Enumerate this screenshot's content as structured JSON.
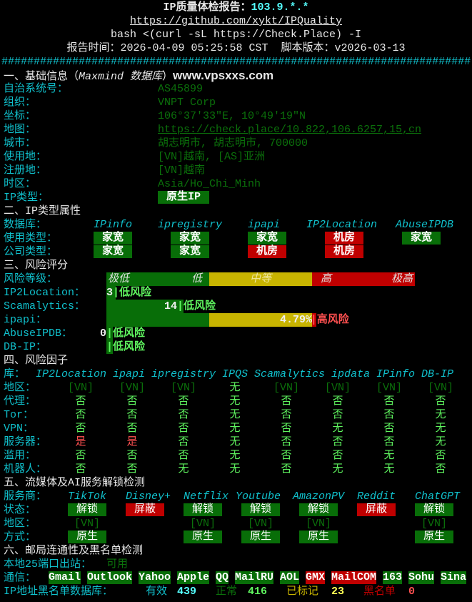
{
  "header": {
    "title_label": "IP质量体检报告：",
    "title_ip": "103.9.*.*",
    "repo_url": "https://github.com/xykt/IPQuality",
    "command": "bash <(curl -sL https://Check.Place) -I",
    "report_time": "报告时间：2026-04-09 05:25:58 CST  脚本版本：v2026-03-13",
    "separator": "#########################################################################"
  },
  "basic": {
    "heading": "一、基础信息（",
    "heading_db": "Maxmind 数据库",
    "heading_end": "）",
    "watermark": "www.vpsxxs.com",
    "rows": [
      {
        "label": "自治系统号：",
        "value": "AS45899"
      },
      {
        "label": "组织：",
        "value": "VNPT Corp"
      },
      {
        "label": "坐标：",
        "value": "106°37′33″E, 10°49′19″N"
      },
      {
        "label": "地图：",
        "value": "https://check.place/10.822,106.6257,15,cn"
      },
      {
        "label": "城市：",
        "value": "胡志明市, 胡志明市, 700000"
      },
      {
        "label": "使用地：",
        "value": "[VN]越南, [AS]亚洲"
      },
      {
        "label": "注册地：",
        "value": "[VN]越南"
      },
      {
        "label": "时区：",
        "value": "Asia/Ho_Chi_Minh"
      }
    ],
    "ip_type_label": "IP类型：",
    "ip_type_value": "原生IP"
  },
  "type_attr": {
    "heading": "二、IP类型属性",
    "db_label": "数据库：",
    "usage_label": "使用类型：",
    "company_label": "公司类型：",
    "databases": [
      {
        "name": "IPinfo",
        "usage": "家宽",
        "usage_color": "green",
        "company": "家宽",
        "company_color": "green"
      },
      {
        "name": "ipregistry",
        "usage": "家宽",
        "usage_color": "green",
        "company": "家宽",
        "company_color": "green"
      },
      {
        "name": "ipapi",
        "usage": "家宽",
        "usage_color": "green",
        "company": "机房",
        "company_color": "red"
      },
      {
        "name": "IP2Location",
        "usage": "机房",
        "usage_color": "red",
        "company": "机房",
        "company_color": "red"
      },
      {
        "name": "AbuseIPDB",
        "usage": "家宽",
        "usage_color": "green"
      }
    ]
  },
  "risk": {
    "heading": "三、风险评分",
    "scale_label": "风险等级：",
    "scale": [
      "极低",
      "低",
      "中等",
      "高",
      "极高"
    ],
    "scores": [
      {
        "label": "IP2Location：",
        "value": "3",
        "level_fraction": 0.03,
        "verdict": "|低风险",
        "verdict_color": "green"
      },
      {
        "label": "Scamalytics：",
        "value": "14",
        "level_fraction": 0.25,
        "verdict": "|低风险",
        "verdict_color": "green"
      },
      {
        "label": "ipapi：",
        "value": "4.79%",
        "level_fraction": 0.68,
        "verdict": "|高风险",
        "verdict_color": "red"
      },
      {
        "label": "AbuseIPDB：",
        "value": "0",
        "level_fraction": 0.0,
        "verdict": "|低风险",
        "verdict_color": "green"
      },
      {
        "label": "DB-IP：",
        "value": "",
        "level_fraction": 0.0,
        "verdict": "|低风险",
        "verdict_color": "green"
      }
    ]
  },
  "factors": {
    "heading": "四、风险因子",
    "db_label": "库：",
    "columns": [
      "IP2Location",
      "ipapi",
      "ipregistry",
      "IPQS",
      "Scamalytics",
      "ipdata",
      "IPinfo",
      "DB-IP"
    ],
    "rows": [
      {
        "label": "地区：",
        "values": [
          "[VN]",
          "[VN]",
          "[VN]",
          "无",
          "[VN]",
          "[VN]",
          "[VN]",
          "[VN]"
        ]
      },
      {
        "label": "代理：",
        "values": [
          "否",
          "否",
          "否",
          "无",
          "否",
          "否",
          "否",
          "否"
        ]
      },
      {
        "label": "Tor：",
        "values": [
          "否",
          "否",
          "否",
          "无",
          "否",
          "否",
          "否",
          "无"
        ]
      },
      {
        "label": "VPN：",
        "values": [
          "否",
          "否",
          "否",
          "无",
          "否",
          "无",
          "否",
          "无"
        ]
      },
      {
        "label": "服务器：",
        "values": [
          "是",
          "是",
          "否",
          "无",
          "否",
          "否",
          "否",
          "无"
        ]
      },
      {
        "label": "滥用：",
        "values": [
          "否",
          "否",
          "否",
          "无",
          "否",
          "否",
          "无",
          "否"
        ]
      },
      {
        "label": "机器人：",
        "values": [
          "否",
          "否",
          "无",
          "无",
          "否",
          "无",
          "无",
          "否"
        ]
      }
    ]
  },
  "streaming": {
    "heading": "五、流媒体及AI服务解锁检测",
    "provider_label": "服务商：",
    "status_label": "状态：",
    "region_label": "地区：",
    "method_label": "方式：",
    "services": [
      {
        "name": "TikTok",
        "status": "解锁",
        "status_color": "green",
        "region": "[VN]",
        "method": "原生"
      },
      {
        "name": "Disney+",
        "status": "屏蔽",
        "status_color": "red",
        "region": "",
        "method": ""
      },
      {
        "name": "Netflix",
        "status": "解锁",
        "status_color": "green",
        "region": "[VN]",
        "method": "原生"
      },
      {
        "name": "Youtube",
        "status": "解锁",
        "status_color": "green",
        "region": "[VN]",
        "method": "原生"
      },
      {
        "name": "AmazonPV",
        "status": "解锁",
        "status_color": "green",
        "region": "[VN]",
        "method": "原生"
      },
      {
        "name": "Reddit",
        "status": "屏蔽",
        "status_color": "red",
        "region": "",
        "method": ""
      },
      {
        "name": "ChatGPT",
        "status": "解锁",
        "status_color": "green",
        "region": "[VN]",
        "method": "原生"
      }
    ]
  },
  "mail": {
    "heading": "六、邮局连通性及黑名单检测",
    "port25_label": "本地25端口出站：",
    "port25_value": "可用",
    "comm_label": "通信：",
    "providers": [
      {
        "name": "Gmail",
        "color": "green"
      },
      {
        "name": "Outlook",
        "color": "green"
      },
      {
        "name": "Yahoo",
        "color": "green"
      },
      {
        "name": "Apple",
        "color": "green"
      },
      {
        "name": "QQ",
        "color": "green"
      },
      {
        "name": "MailRU",
        "color": "green"
      },
      {
        "name": "AOL",
        "color": "green"
      },
      {
        "name": "GMX",
        "color": "red"
      },
      {
        "name": "MailCOM",
        "color": "red"
      },
      {
        "name": "163",
        "color": "green"
      },
      {
        "name": "Sohu",
        "color": "green"
      },
      {
        "name": "Sina",
        "color": "green"
      }
    ],
    "blacklist_label": "IP地址黑名单数据库：",
    "valid_label": "有效",
    "valid_count": "439",
    "clean_label": "正常",
    "clean_count": "416",
    "flagged_label": "已标记",
    "flagged_count": "23",
    "blacklisted_label": "黑名单",
    "blacklisted_count": "0"
  },
  "colors": {
    "green_bg": "#086e08",
    "red_bg": "#c00000",
    "yellow_bg": "#c8b400",
    "label_cyan": "#10c0cc"
  }
}
